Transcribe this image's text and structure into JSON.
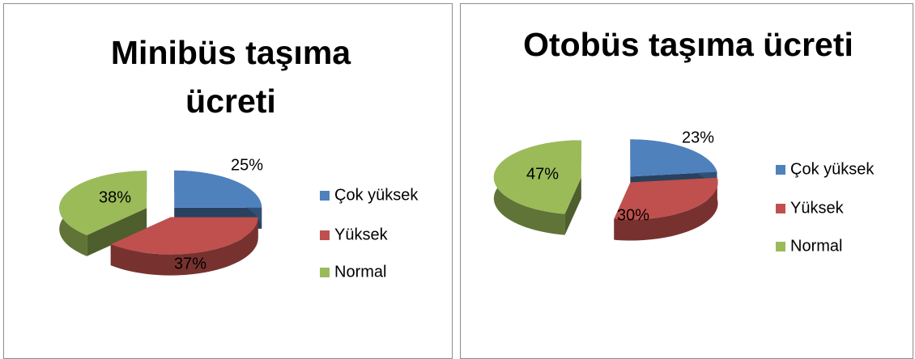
{
  "chart_data": [
    {
      "type": "pie",
      "title": "Minibüs taşıma ücreti",
      "categories": [
        "Çok yüksek",
        "Yüksek",
        "Normal"
      ],
      "values": [
        25,
        37,
        38
      ],
      "value_labels": [
        "25%",
        "37%",
        "38%"
      ],
      "colors": [
        "#4f81bd",
        "#c0504d",
        "#9bbb59"
      ],
      "legend": "right"
    },
    {
      "type": "pie",
      "title": "Otobüs taşıma ücreti",
      "categories": [
        "Çok yüksek",
        "Yüksek",
        "Normal"
      ],
      "values": [
        23,
        30,
        47
      ],
      "value_labels": [
        "23%",
        "30%",
        "47%"
      ],
      "colors": [
        "#4f81bd",
        "#c0504d",
        "#9bbb59"
      ],
      "legend": "right"
    }
  ]
}
